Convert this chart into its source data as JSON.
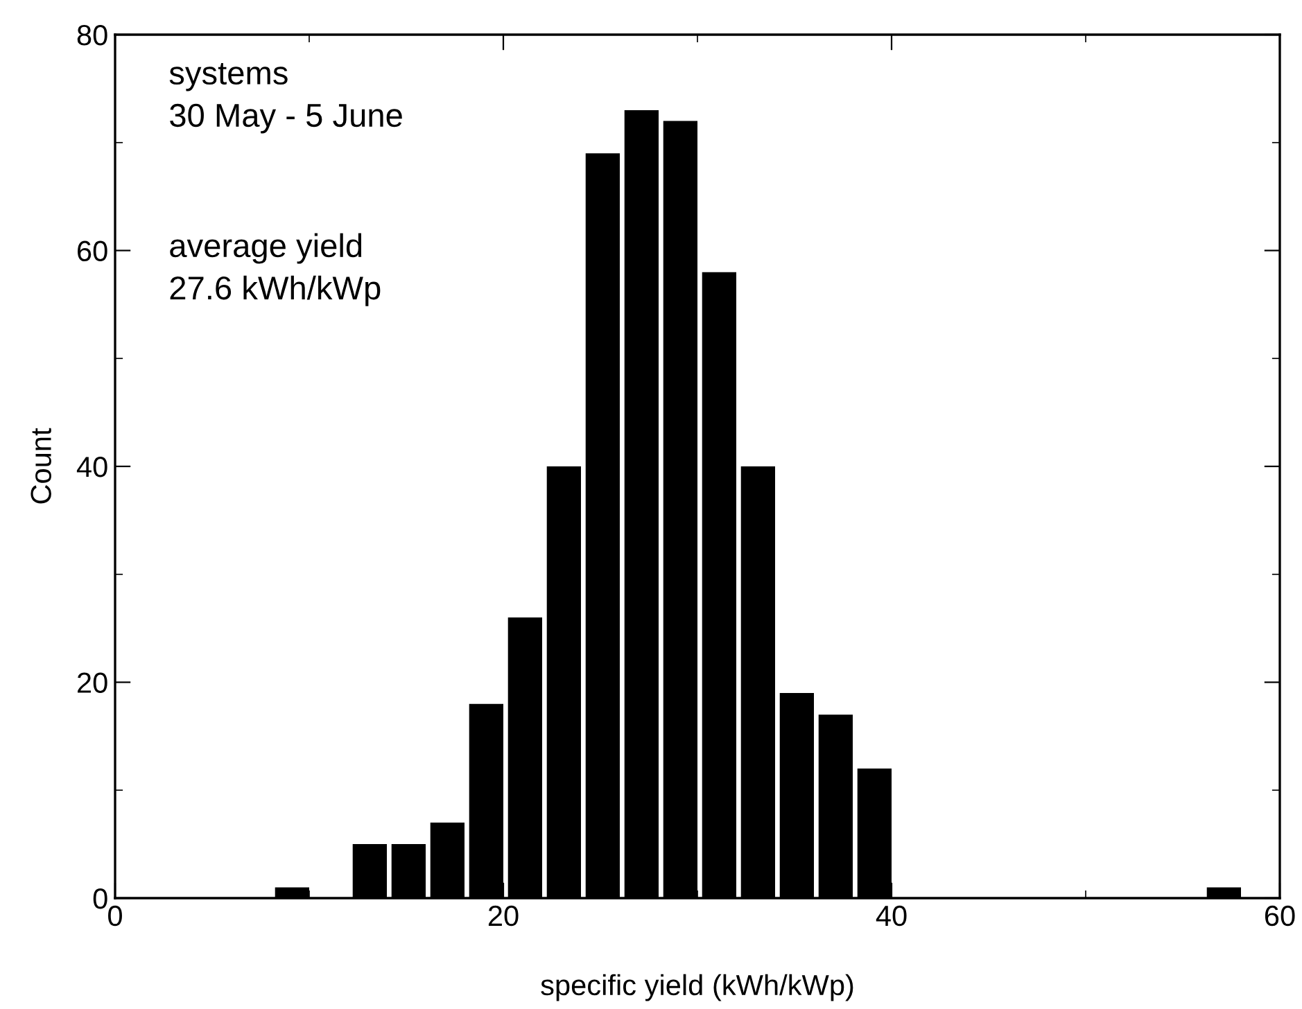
{
  "chart_data": {
    "type": "histogram",
    "xlabel": "specific yield (kWh/kWp)",
    "ylabel": "Count",
    "annotations": [
      "systems\n30 May - 5 June",
      "average yield\n27.6 kWh/kWp"
    ],
    "bins": [
      8,
      10,
      12,
      14,
      16,
      18,
      20,
      22,
      24,
      26,
      28,
      30,
      32,
      34,
      36,
      38,
      40,
      42,
      44,
      46,
      48,
      50,
      52,
      54,
      56,
      58
    ],
    "values": [
      1,
      0,
      5,
      5,
      7,
      18,
      26,
      40,
      69,
      73,
      72,
      58,
      40,
      19,
      17,
      12,
      0,
      0,
      0,
      0,
      0,
      0,
      0,
      0,
      1
    ],
    "color": "#000000",
    "xlim": [
      0,
      60
    ],
    "ylim": [
      0,
      80
    ],
    "xticks": [
      0,
      20,
      40,
      60
    ],
    "yticks": [
      0,
      20,
      40,
      60,
      80
    ],
    "grid": false,
    "legend": false
  }
}
